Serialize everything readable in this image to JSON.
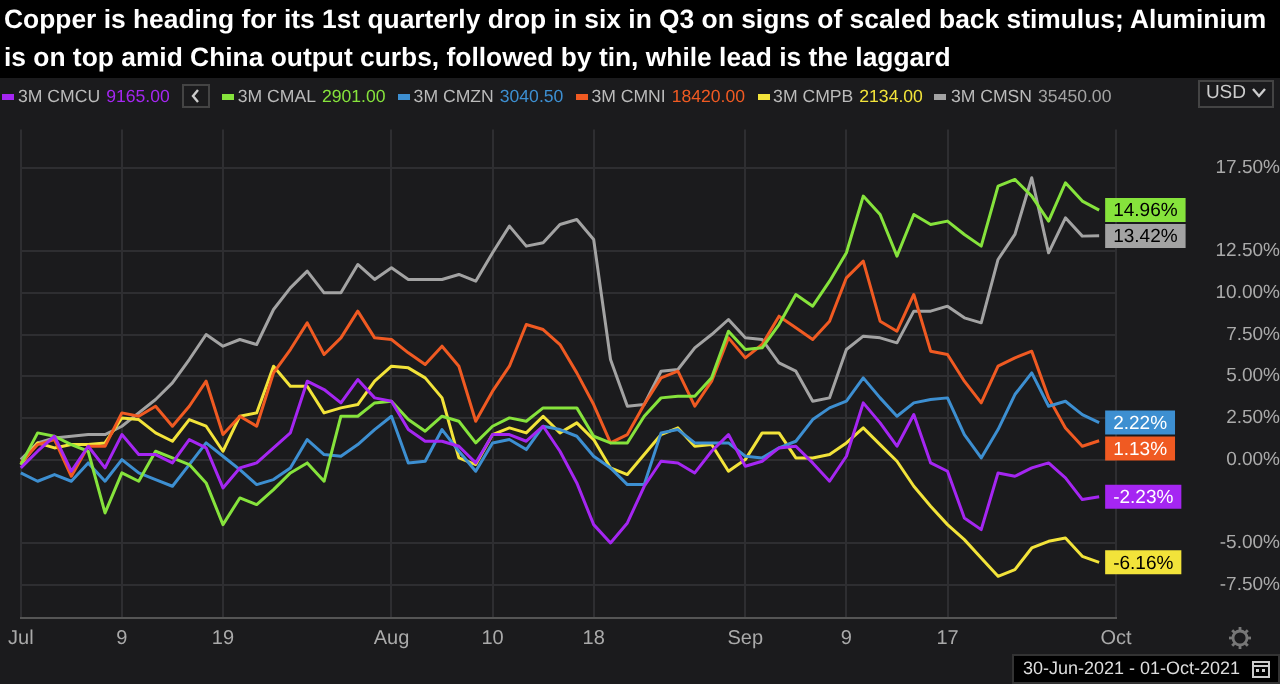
{
  "chart_data": {
    "type": "line",
    "title": "Copper is heading for its 1st quarterly drop in six in Q3 on signs of scaled back stimulus; Aluminium is on top amid China output curbs, followed by tin, while lead is the laggard",
    "categories": [
      "Jul",
      null,
      null,
      null,
      null,
      null,
      "9",
      null,
      null,
      null,
      null,
      null,
      "19",
      null,
      null,
      null,
      null,
      null,
      null,
      null,
      null,
      null,
      "Aug",
      null,
      null,
      null,
      null,
      null,
      "10",
      null,
      null,
      null,
      null,
      null,
      "18",
      null,
      null,
      null,
      null,
      null,
      null,
      null,
      null,
      "Sep",
      null,
      null,
      null,
      null,
      null,
      "9",
      null,
      null,
      null,
      null,
      null,
      "17",
      null,
      null,
      null,
      null,
      null,
      null,
      null,
      null,
      null,
      "Oct"
    ],
    "series": [
      {
        "name": "3M CMCU",
        "color": "#a526f2",
        "values": [
          -0.5,
          0.5,
          1.4,
          -0.7,
          0.8,
          -0.5,
          1.5,
          0.3,
          0.3,
          -0.2,
          1.2,
          0.7,
          -1.7,
          -0.5,
          -0.2,
          0.7,
          1.6,
          4.7,
          4.2,
          3.4,
          4.8,
          3.7,
          3.5,
          1.8,
          1.1,
          1.1,
          0.8,
          -0.2,
          1.5,
          1.5,
          1.1,
          2.0,
          0.5,
          -1.4,
          -3.9,
          -5.0,
          -3.8,
          -1.6,
          -0.1,
          -0.2,
          -0.8,
          0.5,
          1.5,
          -0.4,
          -0.1,
          0.7,
          0.8,
          -0.2,
          -1.3,
          0.2,
          3.4,
          2.2,
          0.8,
          2.7,
          -0.2,
          -0.7,
          -3.5,
          -4.2,
          -0.8,
          -1.0,
          -0.5,
          -0.2,
          -1.1,
          -2.4,
          -2.23,
          null
        ],
        "value_labels": [
          null,
          null,
          null,
          null,
          null,
          null,
          null,
          null,
          null,
          null,
          null,
          null,
          null,
          null,
          null,
          null,
          null,
          null,
          null,
          null,
          null,
          null,
          null,
          null,
          null,
          null,
          null,
          null,
          null,
          null,
          null,
          null,
          null,
          null,
          null,
          null,
          null,
          null,
          null,
          null,
          null,
          null,
          null,
          null,
          null,
          null,
          null,
          null,
          null,
          null,
          null,
          null,
          null,
          null,
          null,
          null,
          null,
          null,
          null,
          null,
          null,
          null,
          null,
          null,
          "-2.23%",
          null
        ]
      },
      {
        "name": "3M CMAL",
        "color": "#86e33c",
        "values": [
          -0.3,
          1.6,
          1.4,
          0.9,
          0.5,
          -3.2,
          -0.8,
          -1.3,
          0.5,
          0.1,
          -0.3,
          -1.4,
          -3.9,
          -2.3,
          -2.7,
          -1.8,
          -0.8,
          -0.2,
          -1.3,
          2.6,
          2.6,
          3.4,
          3.5,
          2.4,
          1.7,
          2.6,
          2.3,
          1.0,
          2.0,
          2.5,
          2.3,
          3.1,
          3.1,
          3.1,
          1.4,
          1.0,
          1.0,
          2.6,
          3.7,
          3.8,
          3.8,
          4.9,
          7.7,
          6.6,
          6.7,
          8.1,
          9.9,
          9.2,
          10.7,
          12.4,
          15.8,
          14.7,
          12.2,
          14.7,
          14.1,
          14.3,
          13.5,
          12.8,
          16.4,
          16.8,
          15.8,
          14.3,
          16.6,
          15.5,
          14.96,
          null
        ],
        "value_labels": [
          null,
          null,
          null,
          null,
          null,
          null,
          null,
          null,
          null,
          null,
          null,
          null,
          null,
          null,
          null,
          null,
          null,
          null,
          null,
          null,
          null,
          null,
          null,
          null,
          null,
          null,
          null,
          null,
          null,
          null,
          null,
          null,
          null,
          null,
          null,
          null,
          null,
          null,
          null,
          null,
          null,
          null,
          null,
          null,
          null,
          null,
          null,
          null,
          null,
          null,
          null,
          null,
          null,
          null,
          null,
          null,
          null,
          null,
          null,
          null,
          null,
          null,
          null,
          null,
          "14.96%",
          null
        ]
      },
      {
        "name": "3M CMZN",
        "color": "#3d8fd1",
        "values": [
          -0.8,
          -1.3,
          -0.9,
          -1.3,
          -0.2,
          -1.3,
          0.0,
          -0.8,
          -1.2,
          -1.6,
          -0.3,
          1.0,
          0.2,
          -0.6,
          -1.5,
          -1.2,
          -0.5,
          1.2,
          0.3,
          0.2,
          0.9,
          1.8,
          2.6,
          -0.2,
          -0.1,
          1.8,
          0.5,
          -0.7,
          1.0,
          1.2,
          0.6,
          2.0,
          1.8,
          1.4,
          0.2,
          -0.5,
          -1.5,
          -1.5,
          1.6,
          1.8,
          1.0,
          1.0,
          1.0,
          0.2,
          0.1,
          0.7,
          1.1,
          2.4,
          3.1,
          3.5,
          4.9,
          3.7,
          2.6,
          3.4,
          3.6,
          3.7,
          1.5,
          0.1,
          1.8,
          3.9,
          5.2,
          3.2,
          3.5,
          2.7,
          2.22,
          null
        ],
        "value_labels": [
          null,
          null,
          null,
          null,
          null,
          null,
          null,
          null,
          null,
          null,
          null,
          null,
          null,
          null,
          null,
          null,
          null,
          null,
          null,
          null,
          null,
          null,
          null,
          null,
          null,
          null,
          null,
          null,
          null,
          null,
          null,
          null,
          null,
          null,
          null,
          null,
          null,
          null,
          null,
          null,
          null,
          null,
          null,
          null,
          null,
          null,
          null,
          null,
          null,
          null,
          null,
          null,
          null,
          null,
          null,
          null,
          null,
          null,
          null,
          null,
          null,
          null,
          null,
          null,
          "2.22%",
          null
        ]
      },
      {
        "name": "3M CMNI",
        "color": "#f05a22",
        "values": [
          -0.2,
          0.9,
          1.2,
          -1.0,
          0.8,
          0.8,
          2.8,
          2.6,
          3.2,
          2.0,
          3.2,
          4.7,
          1.5,
          2.6,
          2.0,
          5.2,
          6.6,
          8.2,
          6.3,
          7.3,
          8.9,
          7.3,
          7.2,
          6.4,
          5.7,
          6.8,
          5.6,
          2.3,
          4.1,
          5.6,
          8.1,
          7.8,
          6.9,
          5.2,
          3.3,
          1.0,
          1.5,
          3.3,
          4.9,
          5.3,
          3.2,
          4.7,
          7.3,
          6.1,
          6.9,
          8.6,
          7.9,
          7.2,
          8.3,
          10.9,
          11.9,
          8.3,
          7.7,
          9.9,
          6.5,
          6.3,
          4.7,
          3.4,
          5.6,
          6.1,
          6.5,
          3.7,
          1.9,
          0.8,
          1.13,
          null
        ],
        "value_labels": [
          null,
          null,
          null,
          null,
          null,
          null,
          null,
          null,
          null,
          null,
          null,
          null,
          null,
          null,
          null,
          null,
          null,
          null,
          null,
          null,
          null,
          null,
          null,
          null,
          null,
          null,
          null,
          null,
          null,
          null,
          null,
          null,
          null,
          null,
          null,
          null,
          null,
          null,
          null,
          null,
          null,
          null,
          null,
          null,
          null,
          null,
          null,
          null,
          null,
          null,
          null,
          null,
          null,
          null,
          null,
          null,
          null,
          null,
          null,
          null,
          null,
          null,
          null,
          null,
          "1.13%",
          null
        ]
      },
      {
        "name": "3M CMPB",
        "color": "#f2e33a",
        "values": [
          -0.3,
          1.0,
          0.7,
          0.9,
          0.9,
          1.0,
          2.5,
          2.4,
          1.6,
          1.1,
          2.4,
          2.0,
          0.5,
          2.6,
          2.8,
          5.6,
          4.4,
          4.4,
          2.8,
          3.1,
          3.3,
          4.7,
          5.6,
          5.5,
          4.9,
          3.7,
          0.1,
          -0.3,
          1.5,
          1.9,
          1.6,
          2.6,
          1.6,
          2.2,
          1.2,
          -0.5,
          -0.9,
          0.3,
          1.5,
          1.9,
          0.8,
          0.9,
          -0.7,
          0.0,
          1.6,
          1.6,
          0.1,
          0.1,
          0.3,
          1.0,
          1.9,
          0.9,
          -0.1,
          -1.6,
          -2.8,
          -3.9,
          -4.8,
          -5.9,
          -7.0,
          -6.6,
          -5.3,
          -4.9,
          -4.7,
          -5.8,
          -6.16,
          null
        ],
        "value_labels": [
          null,
          null,
          null,
          null,
          null,
          null,
          null,
          null,
          null,
          null,
          null,
          null,
          null,
          null,
          null,
          null,
          null,
          null,
          null,
          null,
          null,
          null,
          null,
          null,
          null,
          null,
          null,
          null,
          null,
          null,
          null,
          null,
          null,
          null,
          null,
          null,
          null,
          null,
          null,
          null,
          null,
          null,
          null,
          null,
          null,
          null,
          null,
          null,
          null,
          null,
          null,
          null,
          null,
          null,
          null,
          null,
          null,
          null,
          null,
          null,
          null,
          null,
          null,
          null,
          "-6.16%",
          null
        ]
      },
      {
        "name": "3M CMSN",
        "color": "#a3a3a3",
        "values": [
          0.0,
          1.0,
          1.3,
          1.4,
          1.5,
          1.5,
          2.0,
          2.8,
          3.6,
          4.6,
          6.0,
          7.5,
          6.8,
          7.2,
          6.9,
          9.0,
          10.3,
          11.3,
          10.0,
          10.0,
          11.7,
          10.8,
          11.5,
          10.8,
          10.8,
          10.8,
          11.1,
          10.7,
          12.4,
          14.0,
          12.8,
          13.0,
          14.1,
          14.4,
          13.2,
          6.0,
          3.2,
          3.3,
          5.3,
          5.4,
          6.7,
          7.5,
          8.4,
          7.3,
          7.2,
          5.8,
          5.3,
          3.5,
          3.7,
          6.6,
          7.4,
          7.3,
          7.0,
          8.9,
          8.9,
          9.2,
          8.5,
          8.2,
          12.0,
          13.5,
          16.9,
          12.4,
          14.5,
          13.4,
          13.42,
          null
        ],
        "value_labels": [
          null,
          null,
          null,
          null,
          null,
          null,
          null,
          null,
          null,
          null,
          null,
          null,
          null,
          null,
          null,
          null,
          null,
          null,
          null,
          null,
          null,
          null,
          null,
          null,
          null,
          null,
          null,
          null,
          null,
          null,
          null,
          null,
          null,
          null,
          null,
          null,
          null,
          null,
          null,
          null,
          null,
          null,
          null,
          null,
          null,
          null,
          null,
          null,
          null,
          null,
          null,
          null,
          null,
          null,
          null,
          null,
          null,
          null,
          null,
          null,
          null,
          null,
          null,
          null,
          "13.42%",
          null
        ]
      }
    ],
    "ylim": [
      -9.5,
      19.8
    ],
    "yticks": [
      {
        "value": -7.5,
        "label": "-7.50%"
      },
      {
        "value": -5,
        "label": "-5.00%"
      },
      {
        "value": 0,
        "label": "0.00%"
      },
      {
        "value": 2.5,
        "label": "2.50%"
      },
      {
        "value": 5,
        "label": "5.00%"
      },
      {
        "value": 7.5,
        "label": "7.50%"
      },
      {
        "value": 10,
        "label": "10.00%"
      },
      {
        "value": 12.5,
        "label": "12.50%"
      },
      {
        "value": 17.5,
        "label": "17.50%"
      }
    ],
    "grid": true,
    "legend": "top",
    "annotations": [
      "9165.00",
      "2901.00",
      "3040.50",
      "18420.00",
      "2134.00",
      "35450.00",
      "USD",
      "30-Jun-2021 - 01-Oct-2021"
    ]
  }
}
